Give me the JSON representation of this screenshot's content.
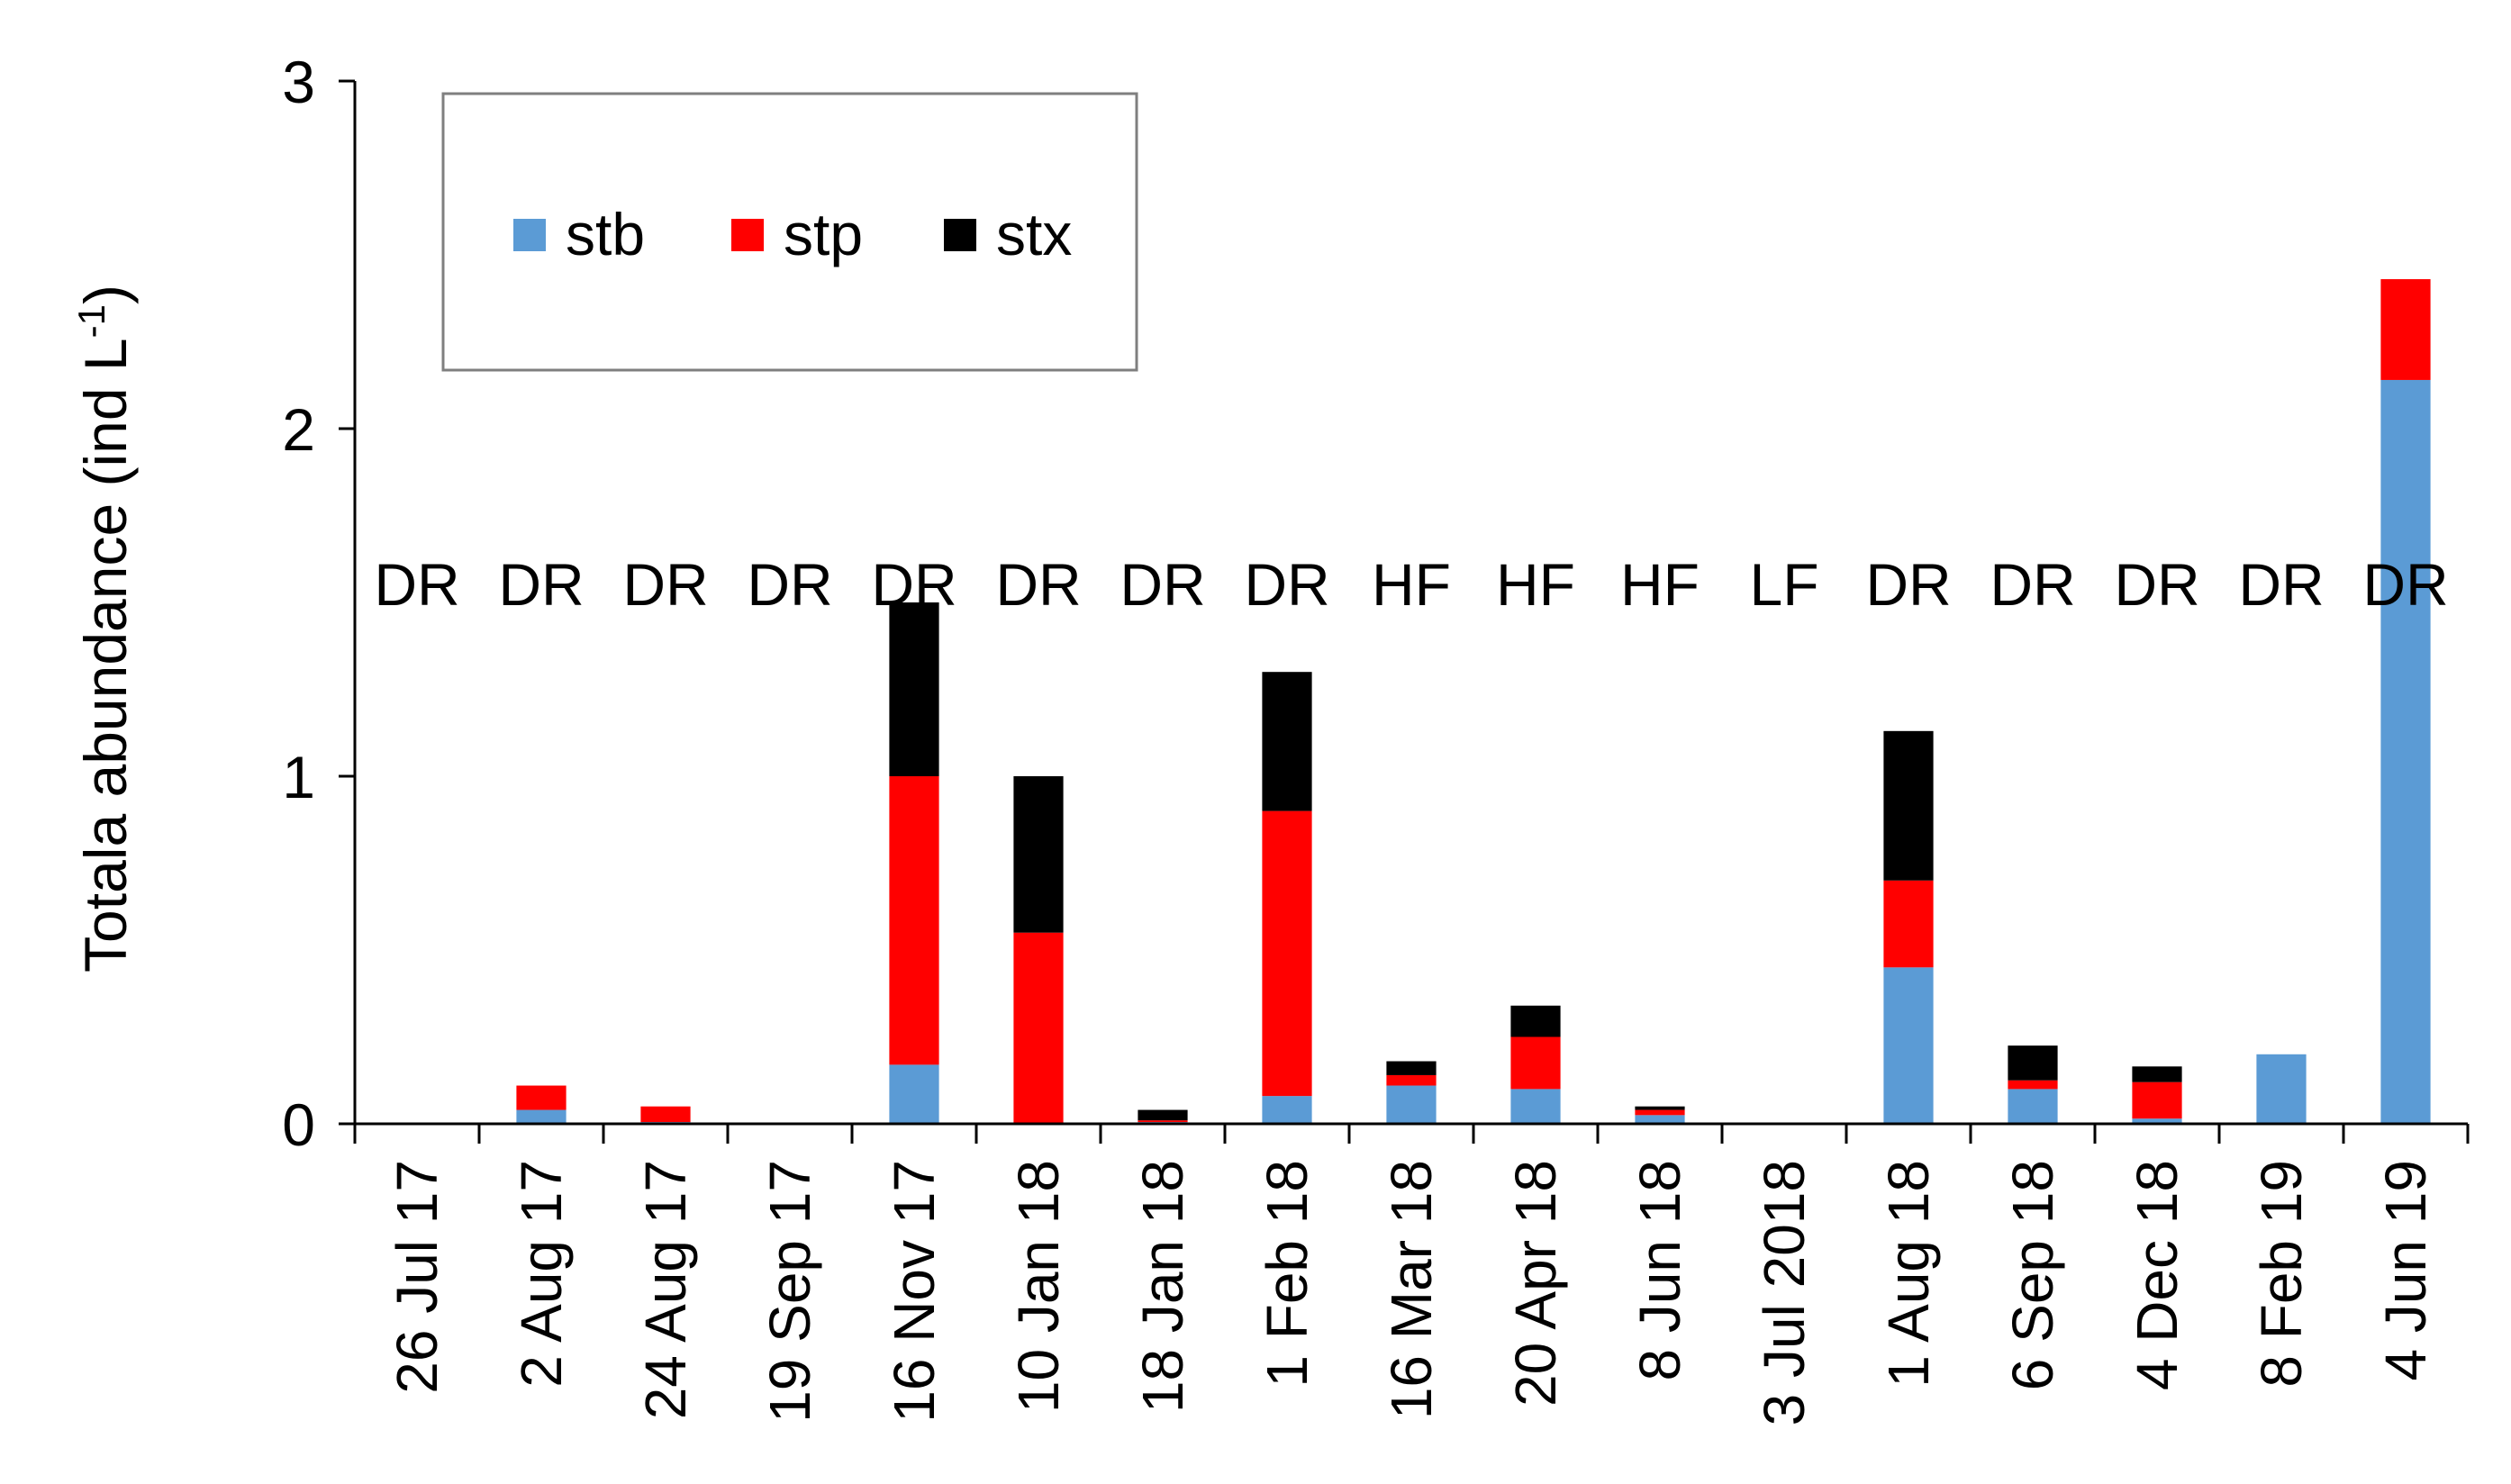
{
  "chart_data": {
    "type": "bar",
    "stacked": true,
    "title": "",
    "ylabel_main": "Totala abundance (ind L",
    "ylabel_superscript": "-1",
    "ylabel_close": ")",
    "xlabel": "",
    "ylim": [
      0,
      3
    ],
    "yticks": [
      "0",
      "1",
      "2",
      "3"
    ],
    "legend_position": "top-left",
    "categories": [
      "26 Jul 17",
      "2 Aug 17",
      "24 Aug 17",
      "19 Sep 17",
      "16 Nov 17",
      "10 Jan 18",
      "18 Jan 18",
      "1 Feb 18",
      "16 Mar 18",
      "20 Apr 18",
      "8 Jun 18",
      "3 Jul 2018",
      "1 Aug 18",
      "6 Sep 18",
      "4 Dec 18",
      "8 Feb 19",
      "4 Jun 19"
    ],
    "annotations": [
      "DR",
      "DR",
      "DR",
      "DR",
      "DR",
      "DR",
      "DR",
      "DR",
      "HF",
      "HF",
      "HF",
      "LF",
      "DR",
      "DR",
      "DR",
      "DR",
      "DR"
    ],
    "series": [
      {
        "name": "stb",
        "color": "#5b9bd5",
        "values": [
          0,
          0.04,
          0.005,
          0,
          0.17,
          0,
          0.005,
          0.08,
          0.11,
          0.1,
          0.025,
          0,
          0.45,
          0.1,
          0.015,
          0.2,
          2.14
        ]
      },
      {
        "name": "stp",
        "color": "#ff0000",
        "values": [
          0,
          0.07,
          0.045,
          0,
          0.83,
          0.55,
          0.005,
          0.82,
          0.03,
          0.15,
          0.015,
          0,
          0.25,
          0.025,
          0.105,
          0,
          0.29
        ]
      },
      {
        "name": "stx",
        "color": "#000000",
        "values": [
          0,
          0,
          0,
          0,
          0.5,
          0.45,
          0.03,
          0.4,
          0.04,
          0.09,
          0.01,
          0,
          0.43,
          0.1,
          0.045,
          0,
          0
        ]
      }
    ]
  }
}
